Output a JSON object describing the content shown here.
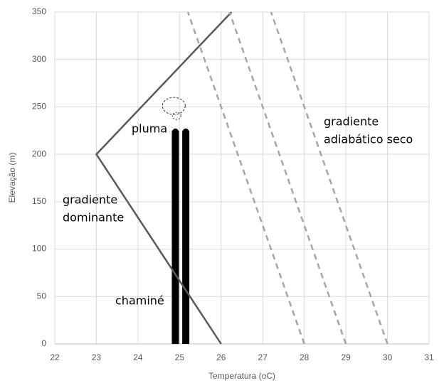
{
  "chart_data": {
    "type": "line",
    "x_label": "Temperatura (oC)",
    "y_label": "Elevação (m)",
    "xlim": [
      22,
      31
    ],
    "xticks": [
      22,
      23,
      24,
      25,
      26,
      27,
      28,
      29,
      30,
      31
    ],
    "ylim": [
      0,
      350
    ],
    "yticks": [
      0,
      50,
      100,
      150,
      200,
      250,
      300,
      350
    ],
    "grid": true,
    "series": [
      {
        "color": "#595959",
        "dashed": false,
        "x": [
          26,
          23,
          26.25
        ],
        "values": [
          0,
          200,
          350
        ]
      },
      {
        "color": "#a6a6a6",
        "dashed": true,
        "x": [
          28,
          25.2
        ],
        "values": [
          0,
          350
        ]
      },
      {
        "color": "#a6a6a6",
        "dashed": true,
        "x": [
          29,
          26.2
        ],
        "values": [
          0,
          350
        ]
      },
      {
        "color": "#a6a6a6",
        "dashed": true,
        "x": [
          30,
          27.2
        ],
        "values": [
          0,
          350
        ]
      }
    ],
    "chimney": {
      "x": [
        24.9,
        25.15
      ],
      "top": 228,
      "color": "#000000"
    },
    "plume": {
      "x": 25.0,
      "y": 248
    },
    "annotations": {
      "plume": [
        "pluma"
      ],
      "dominant": [
        "gradiente",
        "dominante"
      ],
      "chimney": [
        "chaminé"
      ],
      "adiabatic": [
        "gradiente",
        "adiabático seco"
      ]
    }
  }
}
